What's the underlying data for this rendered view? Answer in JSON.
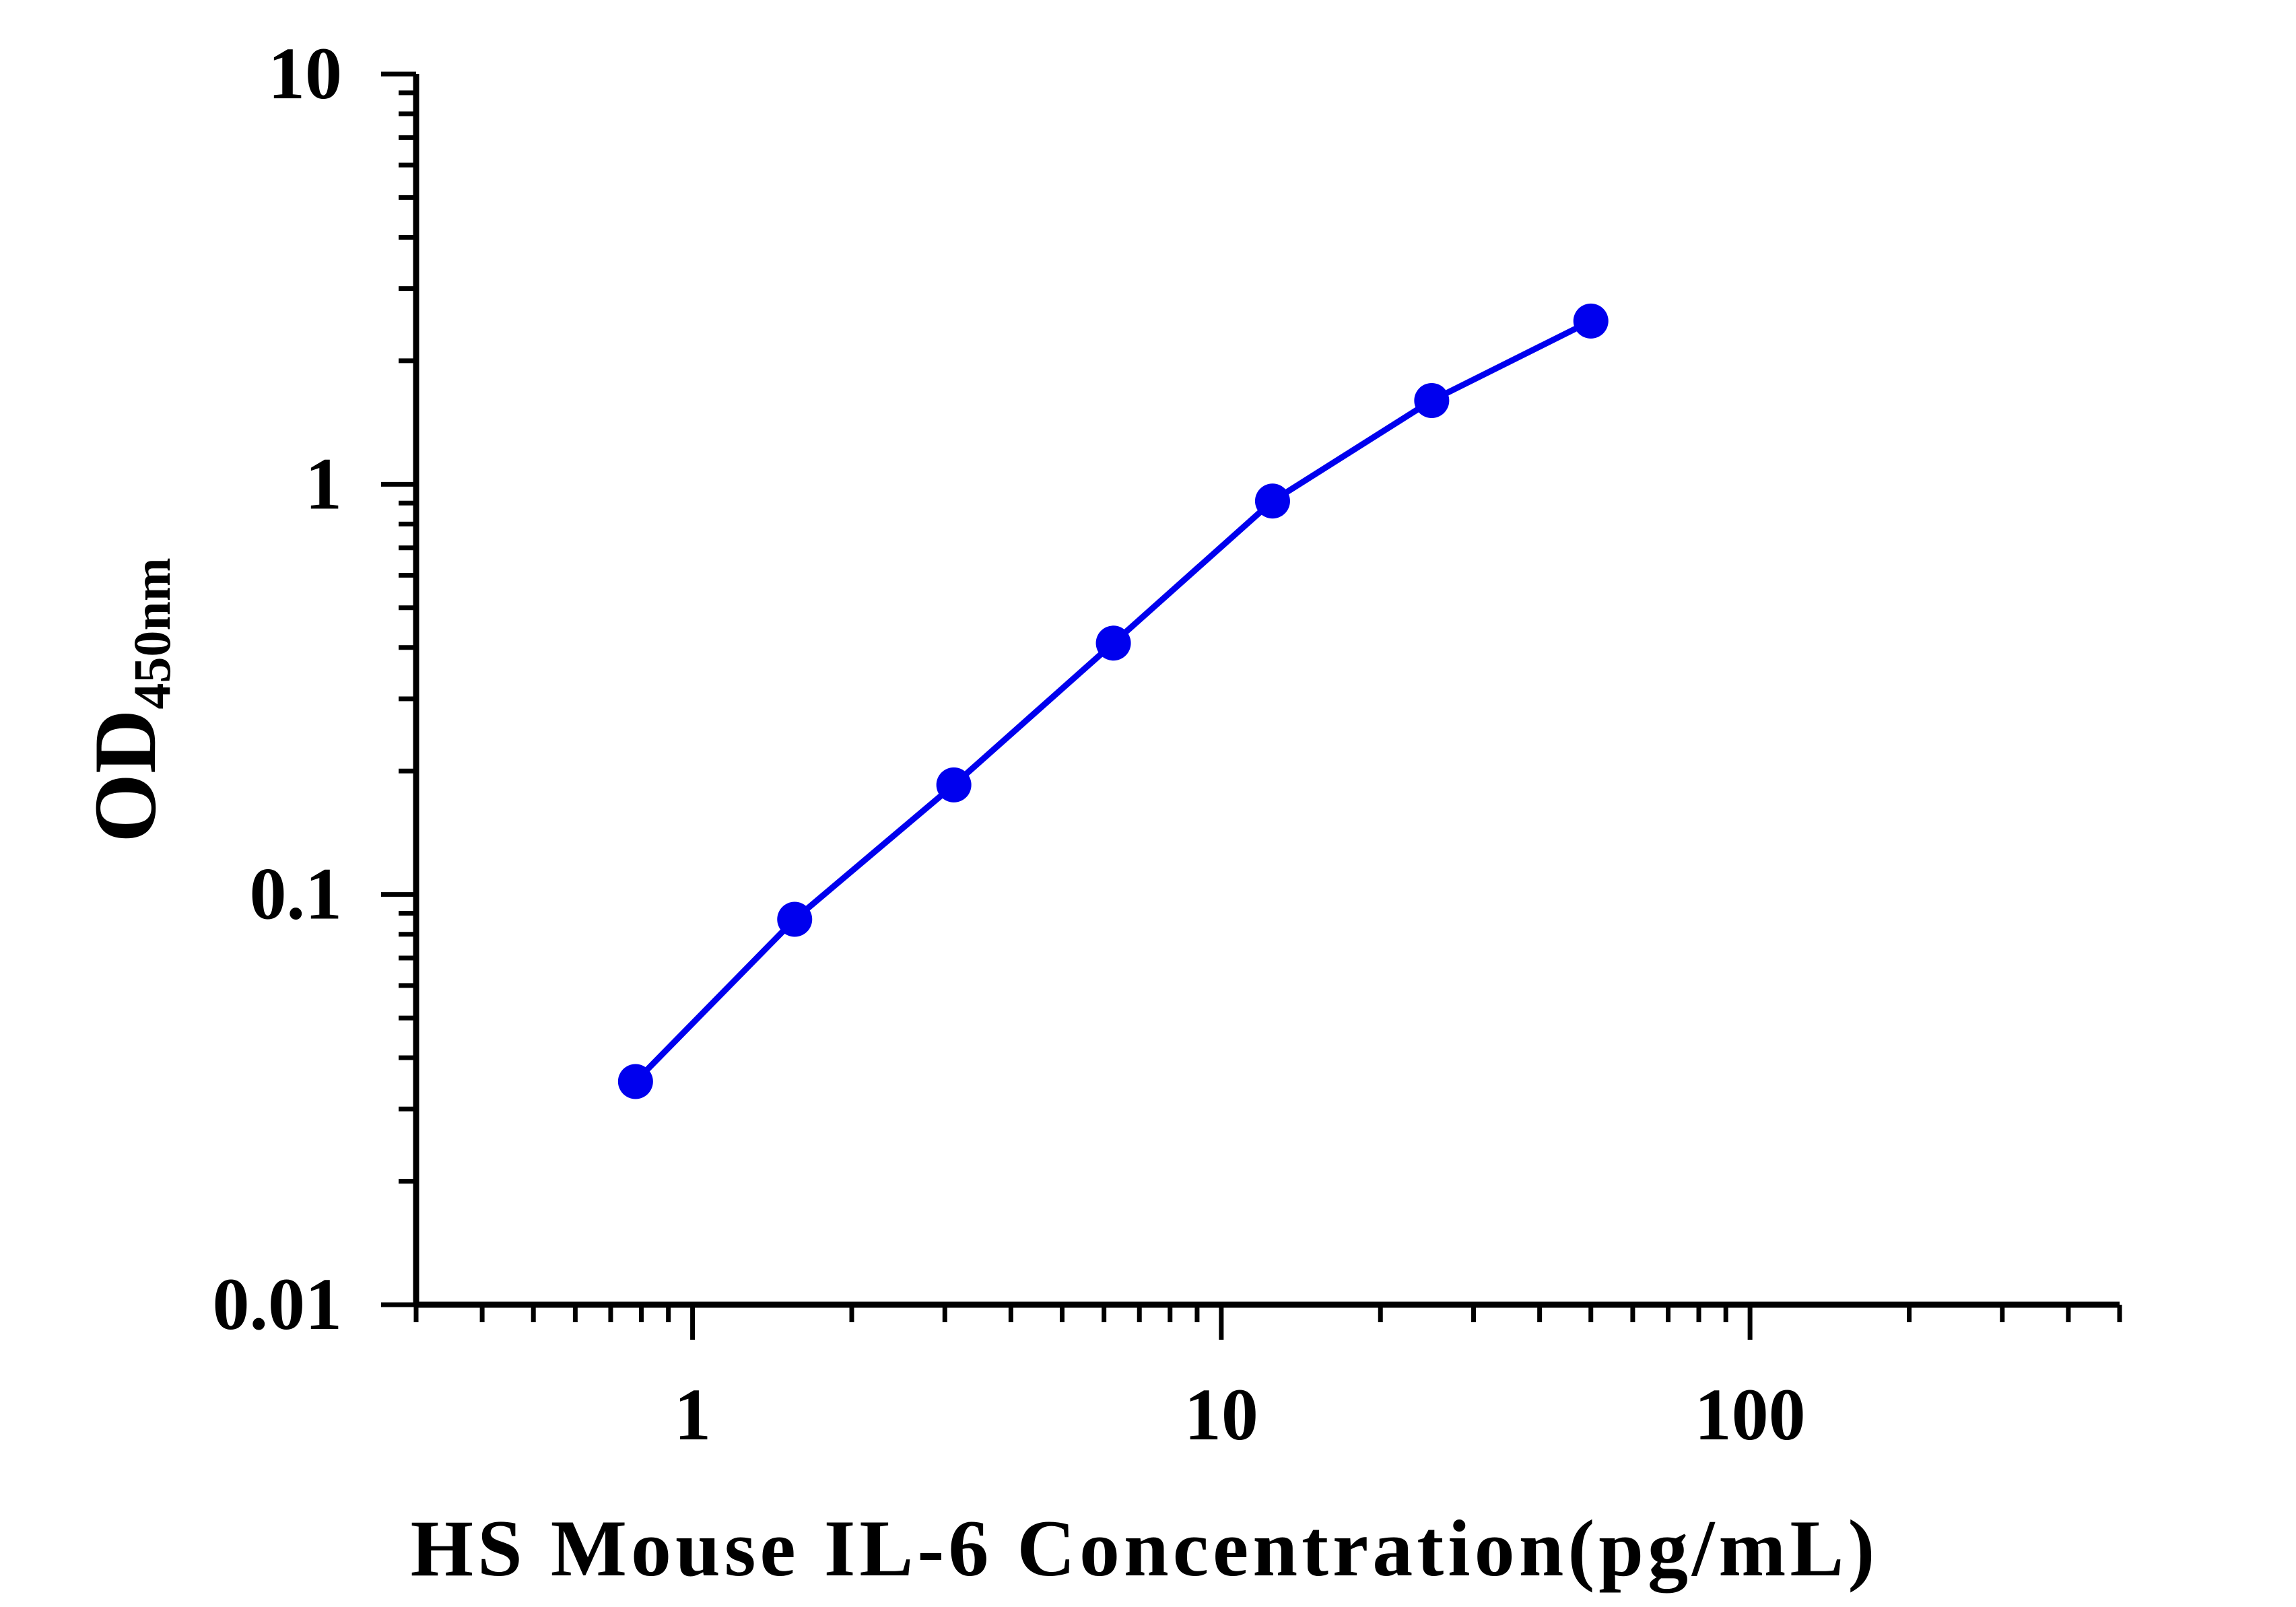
{
  "chart_data": {
    "type": "line",
    "title": "",
    "xlabel": "HS Mouse IL-6 Concentration(pg/mL)",
    "ylabel": "OD",
    "ylabel_subscript": "450nm",
    "xscale": "log",
    "yscale": "log",
    "xlim": [
      0.3,
      500
    ],
    "ylim": [
      0.01,
      10
    ],
    "xticks": [
      {
        "value": 1,
        "label": "1"
      },
      {
        "value": 10,
        "label": "10"
      },
      {
        "value": 100,
        "label": "100"
      }
    ],
    "yticks": [
      {
        "value": 0.01,
        "label": "0.01"
      },
      {
        "value": 0.1,
        "label": "0.1"
      },
      {
        "value": 1,
        "label": "1"
      },
      {
        "value": 10,
        "label": "10"
      }
    ],
    "grid": false,
    "legend": "none",
    "series": [
      {
        "color": "#0000ee",
        "x": [
          0.78,
          1.56,
          3.12,
          6.25,
          12.5,
          25,
          50
        ],
        "y": [
          0.035,
          0.087,
          0.185,
          0.41,
          0.91,
          1.6,
          2.5
        ]
      }
    ]
  }
}
